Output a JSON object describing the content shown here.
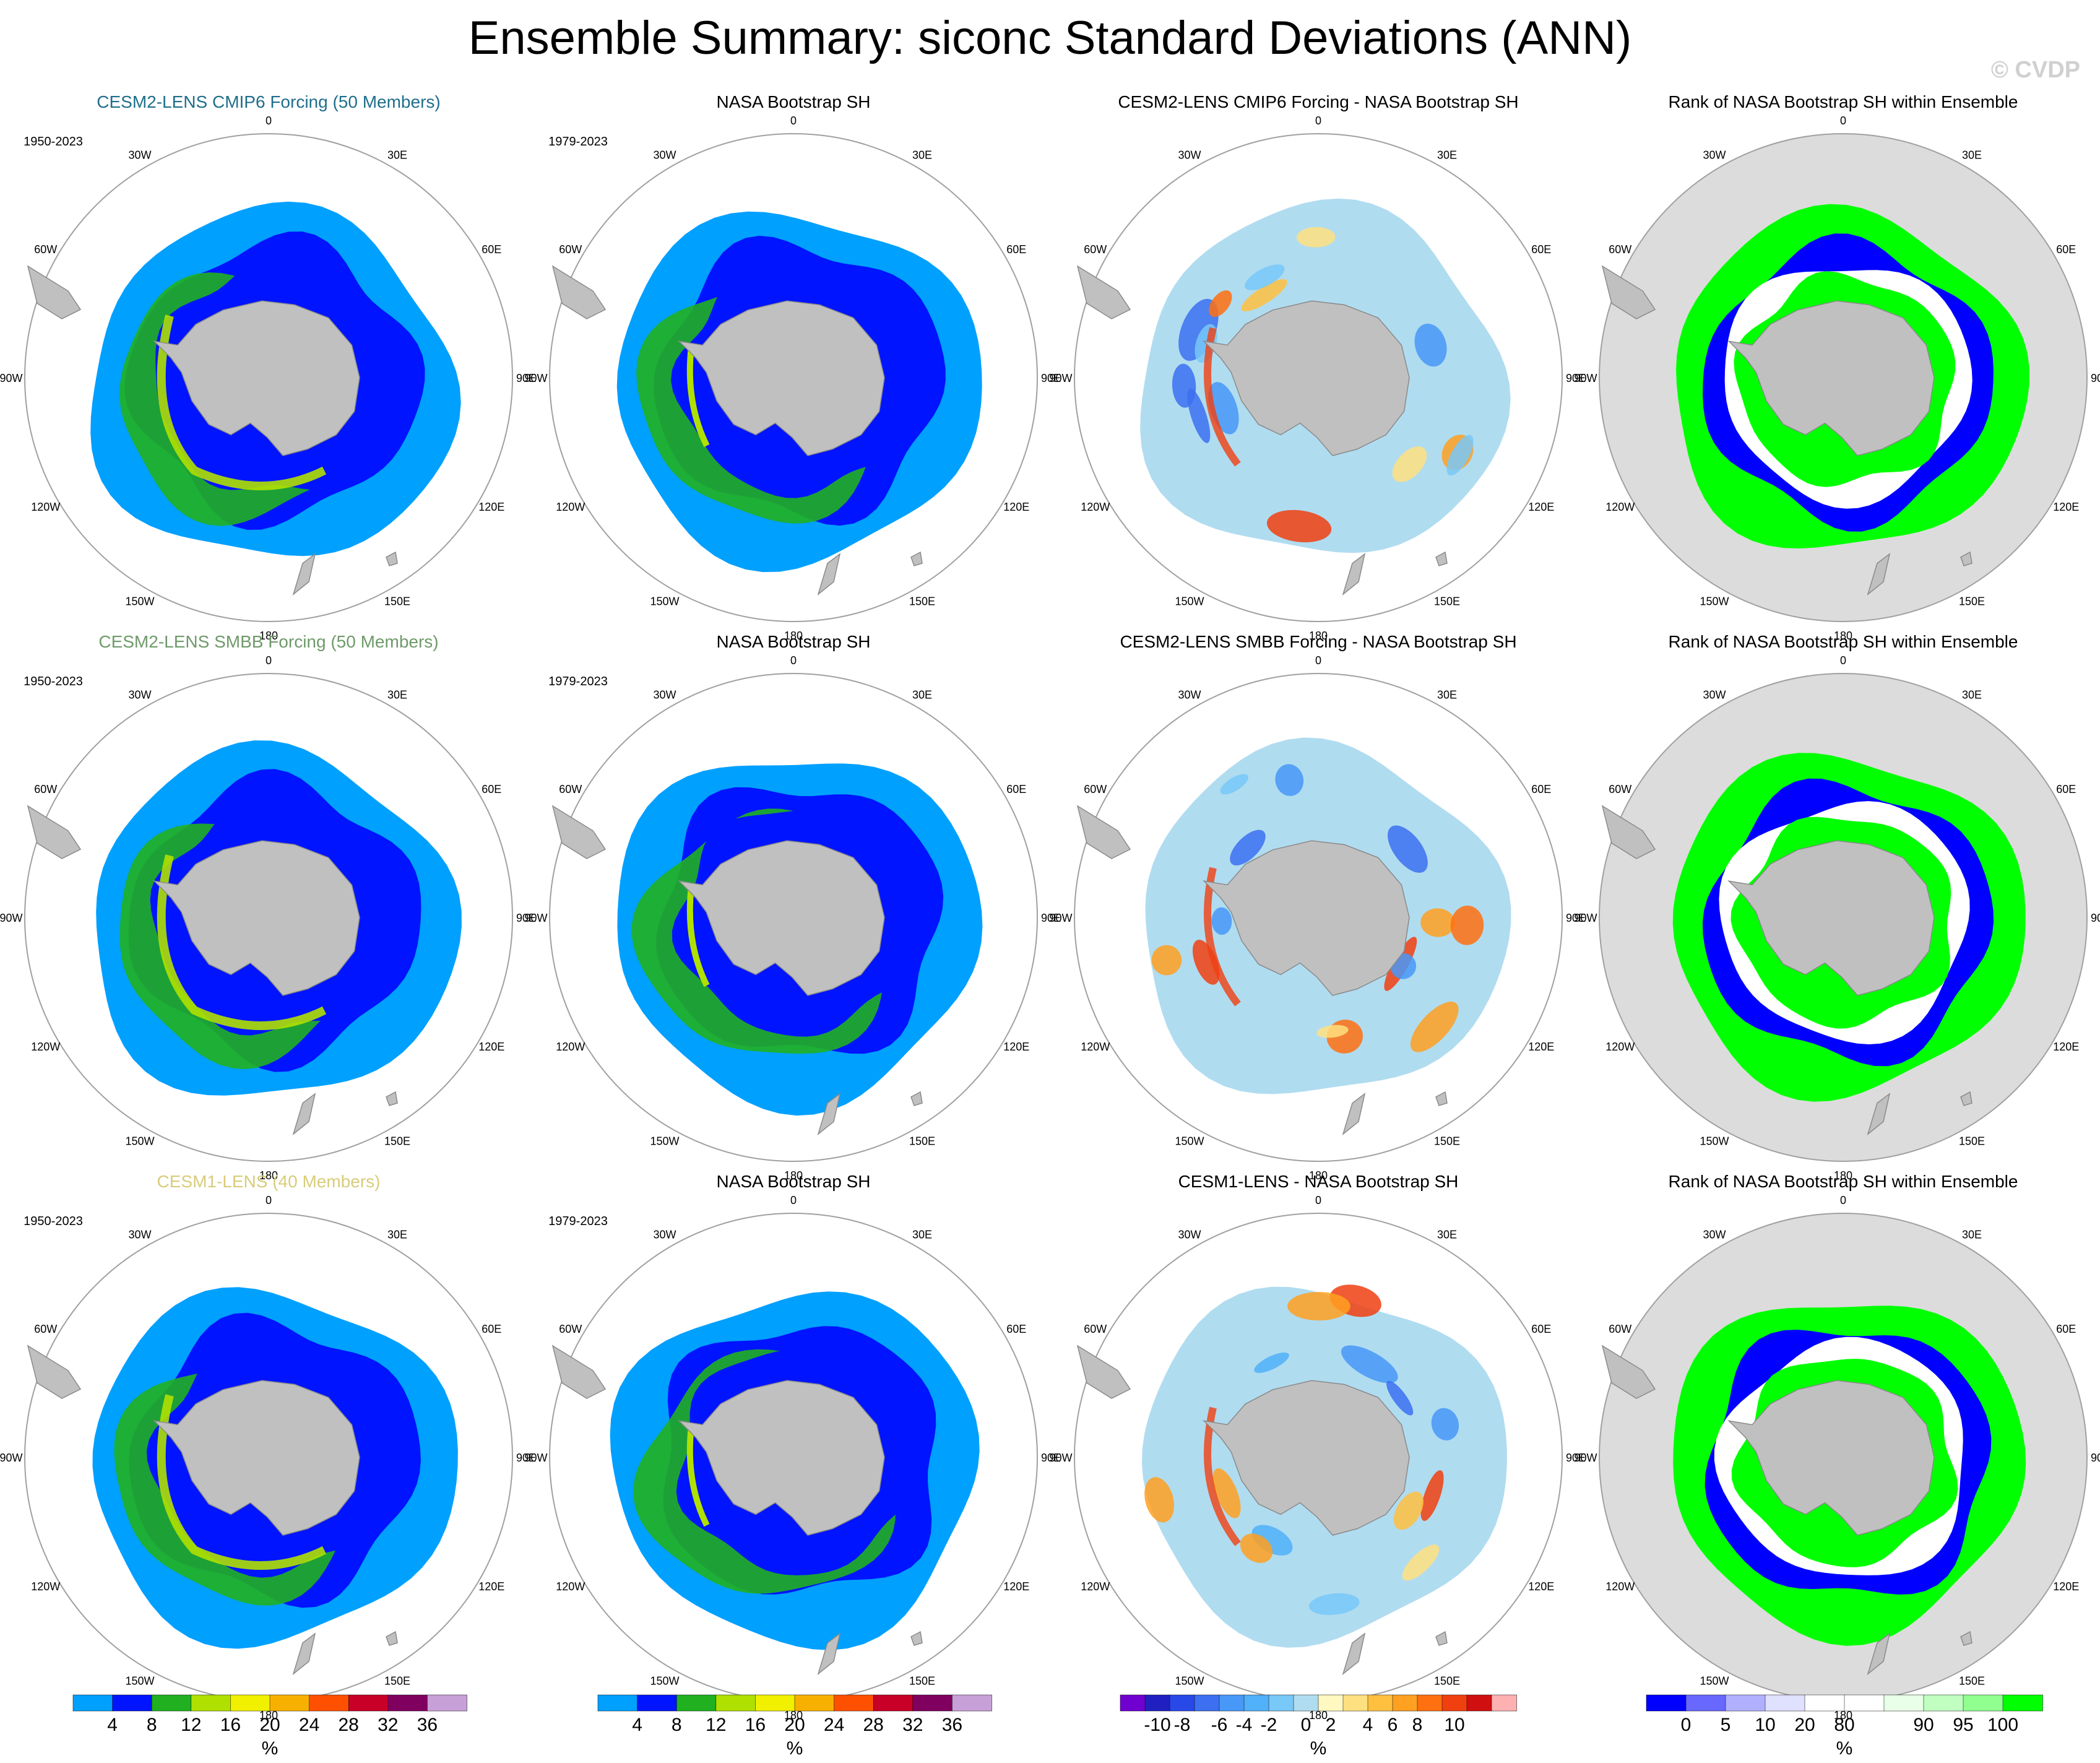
{
  "title": "Ensemble Summary: siconc Standard Deviations (ANN)",
  "watermark": "© CVDP",
  "colors": {
    "ocean_bg": "#ffffff",
    "land": "#c0c0c0",
    "ring": "#a0a0a0",
    "rank_bg": "#dcdcdc"
  },
  "chart_data": {
    "type": "polar-stereographic map grid",
    "variable": "siconc",
    "statistic": "Standard Deviations",
    "season": "ANN",
    "region": "Southern Hemisphere",
    "longitude_labels": [
      "0",
      "30E",
      "60E",
      "90E",
      "120E",
      "150E",
      "180",
      "150W",
      "120W",
      "90W",
      "60W",
      "30W"
    ],
    "rows": [
      {
        "model_title": "CESM2-LENS CMIP6 Forcing (50 Members)",
        "model_title_color": "#1f6e8c",
        "model_period": "1950-2023",
        "obs_title": "NASA Bootstrap SH",
        "obs_period": "1979-2023",
        "diff_title": "CESM2-LENS CMIP6 Forcing - NASA Bootstrap SH",
        "rank_title": "Rank of NASA Bootstrap SH within Ensemble"
      },
      {
        "model_title": "CESM2-LENS SMBB Forcing (50 Members)",
        "model_title_color": "#6f9a6a",
        "model_period": "1950-2023",
        "obs_title": "NASA Bootstrap SH",
        "obs_period": "1979-2023",
        "diff_title": "CESM2-LENS SMBB Forcing - NASA Bootstrap SH",
        "rank_title": "Rank of NASA Bootstrap SH within Ensemble"
      },
      {
        "model_title": "CESM1-LENS (40 Members)",
        "model_title_color": "#d8cc7a",
        "model_period": "1950-2023",
        "obs_title": "NASA Bootstrap SH",
        "obs_period": "1979-2023",
        "diff_title": "CESM1-LENS - NASA Bootstrap SH",
        "rank_title": "Rank of NASA Bootstrap SH within Ensemble"
      }
    ],
    "colorbars": {
      "stddev": {
        "unit": "%",
        "colors": [
          "#00a0ff",
          "#0014ff",
          "#20b020",
          "#b0e000",
          "#f0f000",
          "#f8b000",
          "#ff5000",
          "#c80028",
          "#800060",
          "#c8a0d8"
        ],
        "labels": [
          "4",
          "8",
          "12",
          "16",
          "20",
          "24",
          "28",
          "32",
          "36"
        ]
      },
      "difference": {
        "unit": "%",
        "colors": [
          "#7000d0",
          "#2020c0",
          "#2848e8",
          "#3c70f0",
          "#4898f8",
          "#50b0f8",
          "#78c8f8",
          "#b0dcf0",
          "#fff8c0",
          "#ffe080",
          "#ffc040",
          "#ffa020",
          "#ff7010",
          "#f04010",
          "#d01010",
          "#ffb0b0"
        ],
        "labels": [
          "-10",
          "-8",
          "-6",
          "-4",
          "-2",
          "0",
          "2",
          "4",
          "6",
          "8",
          "10"
        ]
      },
      "rank": {
        "unit": "%",
        "colors": [
          "#0000ff",
          "#6868ff",
          "#b0b0ff",
          "#e0e0ff",
          "#ffffff",
          "#ffffff",
          "#e8ffe8",
          "#c0ffc0",
          "#90ff90",
          "#00ff00"
        ],
        "labels": [
          "0",
          "5",
          "10",
          "20",
          "80",
          "90",
          "95",
          "100"
        ]
      }
    }
  }
}
